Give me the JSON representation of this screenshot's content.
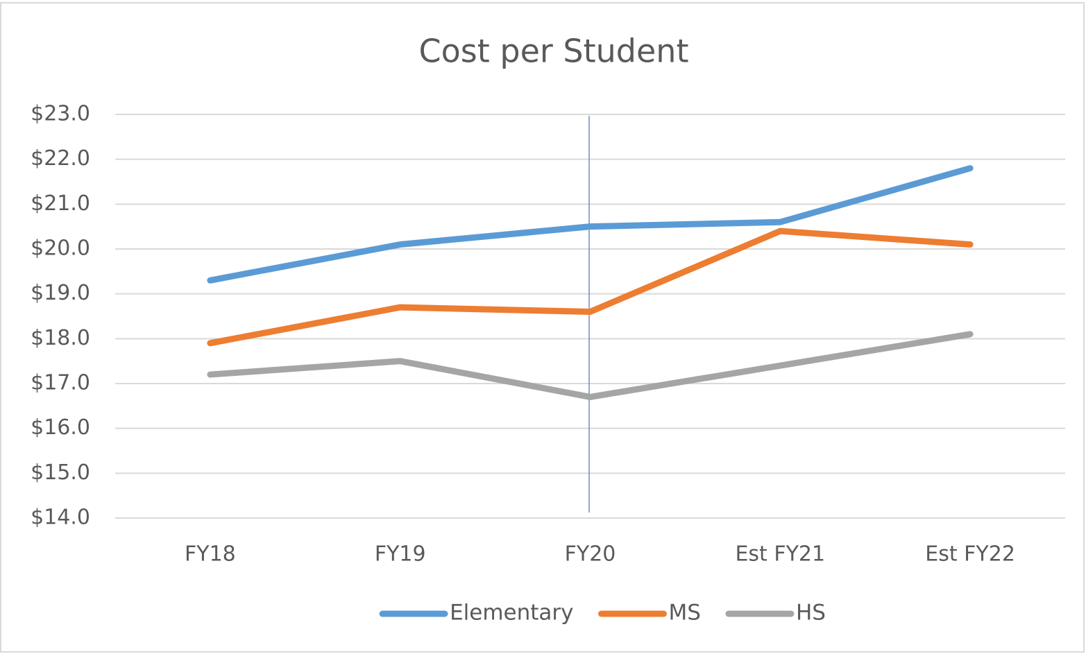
{
  "chart_data": {
    "type": "line",
    "title": "Cost per Student",
    "categories": [
      "FY18",
      "FY19",
      "FY20",
      "Est FY21",
      "Est FY22"
    ],
    "series": [
      {
        "name": "Elementary",
        "color": "#5b9bd5",
        "values": [
          19.3,
          20.1,
          20.5,
          20.6,
          21.8
        ]
      },
      {
        "name": "MS",
        "color": "#ed7d31",
        "values": [
          17.9,
          18.7,
          18.6,
          20.4,
          20.1
        ]
      },
      {
        "name": "HS",
        "color": "#a5a5a5",
        "values": [
          17.2,
          17.5,
          16.7,
          17.4,
          18.1
        ]
      }
    ],
    "ylim": [
      14,
      23
    ],
    "yticks": [
      {
        "value": 14,
        "label": "$14.0"
      },
      {
        "value": 15,
        "label": "$15.0"
      },
      {
        "value": 16,
        "label": "$16.0"
      },
      {
        "value": 17,
        "label": "$17.0"
      },
      {
        "value": 18,
        "label": "$18.0"
      },
      {
        "value": 19,
        "label": "$19.0"
      },
      {
        "value": 20,
        "label": "$20.0"
      },
      {
        "value": 21,
        "label": "$21.0"
      },
      {
        "value": 22,
        "label": "$22.0"
      },
      {
        "value": 23,
        "label": "$23.0"
      }
    ],
    "grid": true,
    "legend": "bottom"
  }
}
